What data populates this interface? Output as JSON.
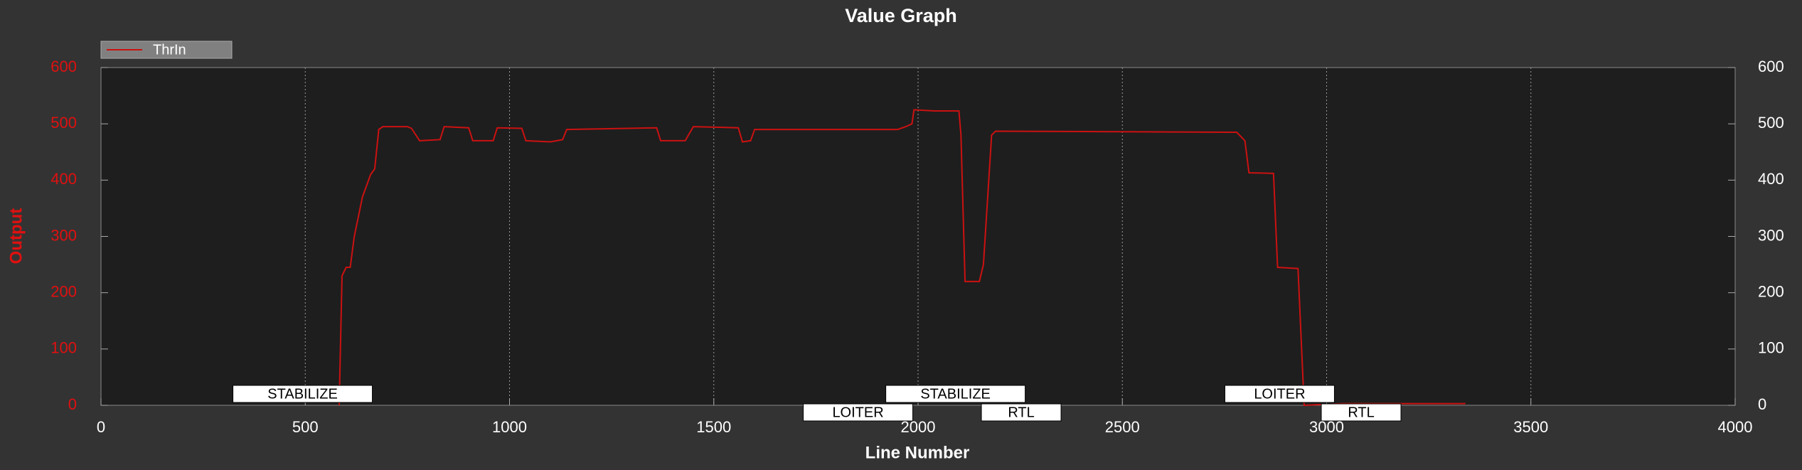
{
  "chart_data": {
    "type": "line",
    "title": "Value Graph",
    "x_label": "Line Number",
    "y_label": "Output",
    "xlim": [
      0,
      4000
    ],
    "ylim": [
      0,
      600
    ],
    "xticks": [
      0,
      500,
      1000,
      1500,
      2000,
      2500,
      3000,
      3500,
      4000
    ],
    "yticks": [
      0,
      100,
      200,
      300,
      400,
      500,
      600
    ],
    "y2lim": [
      0,
      600
    ],
    "y2ticks": [
      0,
      100,
      200,
      300,
      400,
      500,
      600
    ],
    "grid": true,
    "legend": "top-left",
    "series": [
      {
        "name": "ThrIn",
        "color": "#cc1111",
        "x": [
          583,
          590,
          600,
          610,
          620,
          640,
          660,
          670,
          680,
          690,
          750,
          760,
          780,
          830,
          840,
          900,
          910,
          960,
          970,
          1030,
          1040,
          1100,
          1130,
          1140,
          1360,
          1370,
          1430,
          1450,
          1560,
          1570,
          1590,
          1600,
          1950,
          1970,
          1985,
          1990,
          2040,
          2100,
          2105,
          2115,
          2150,
          2160,
          2180,
          2190,
          2780,
          2800,
          2810,
          2870,
          2880,
          2930,
          2945,
          3040,
          3340
        ],
        "values": [
          0,
          230,
          245,
          245,
          300,
          370,
          410,
          420,
          490,
          495,
          495,
          492,
          470,
          472,
          495,
          493,
          470,
          470,
          493,
          492,
          470,
          468,
          472,
          490,
          493,
          470,
          470,
          495,
          493,
          468,
          470,
          490,
          490,
          495,
          500,
          525,
          523,
          523,
          480,
          220,
          220,
          250,
          480,
          487,
          485,
          470,
          413,
          412,
          245,
          243,
          0,
          3,
          3
        ]
      }
    ],
    "annotations": [
      {
        "text": "STABILIZE",
        "x": 323
      },
      {
        "text": "LOITER",
        "x": 1719
      },
      {
        "text": "STABILIZE",
        "x": 1921
      },
      {
        "text": "RTL",
        "x": 2155
      },
      {
        "text": "LOITER",
        "x": 2751
      },
      {
        "text": "RTL",
        "x": 2987
      }
    ]
  }
}
